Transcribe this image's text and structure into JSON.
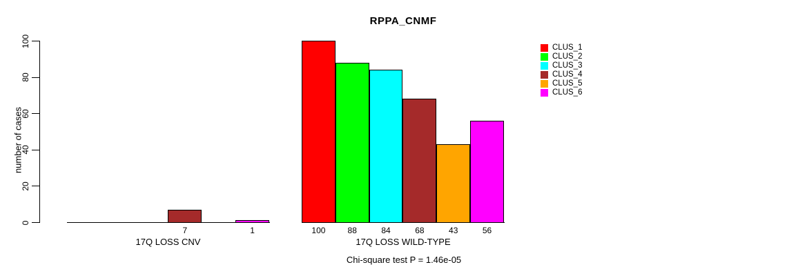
{
  "chart_data": {
    "type": "bar",
    "title": "RPPA_CNMF",
    "ylabel": "number of cases",
    "xlabel": "",
    "ylim": [
      0,
      100
    ],
    "yticks": [
      0,
      20,
      40,
      60,
      80,
      100
    ],
    "grid": false,
    "legend_position": "right",
    "legend": [
      {
        "label": "CLUS_1",
        "color": "#FF0000"
      },
      {
        "label": "CLUS_2",
        "color": "#00FF00"
      },
      {
        "label": "CLUS_3",
        "color": "#00FFFF"
      },
      {
        "label": "CLUS_4",
        "color": "#A52A2A"
      },
      {
        "label": "CLUS_5",
        "color": "#FFA500"
      },
      {
        "label": "CLUS_6",
        "color": "#FF00FF"
      }
    ],
    "groups": [
      {
        "label": "17Q LOSS CNV",
        "values": [
          0,
          0,
          0,
          7,
          0,
          1
        ],
        "bar_labels": [
          "",
          "",
          "",
          "7",
          "",
          "1"
        ]
      },
      {
        "label": "17Q LOSS WILD-TYPE",
        "values": [
          100,
          88,
          84,
          68,
          43,
          56
        ],
        "bar_labels": [
          "100",
          "88",
          "84",
          "68",
          "43",
          "56"
        ]
      }
    ],
    "footnote": "Chi-square test P = 1.46e-05"
  }
}
